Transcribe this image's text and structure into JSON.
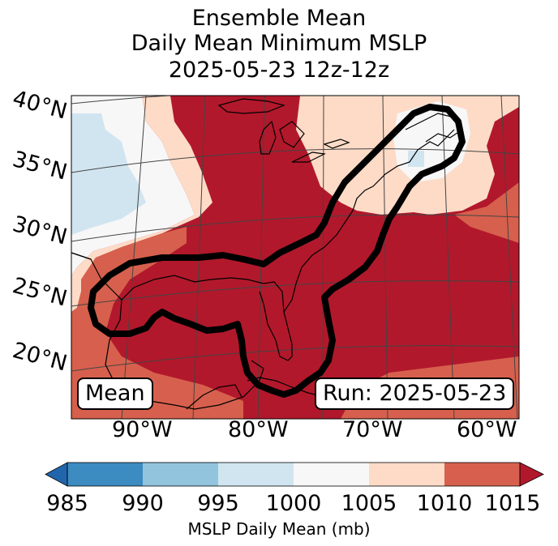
{
  "title": {
    "line1": "Ensemble Mean",
    "line2": "Daily Mean Minimum MSLP",
    "line3": "2025-05-23 12z-12z"
  },
  "map": {
    "lat_labels": [
      "40°N",
      "35°N",
      "30°N",
      "25°N",
      "20°N"
    ],
    "lon_labels": [
      "90°W",
      "80°W",
      "70°W",
      "60°W"
    ],
    "mean_label": "Mean",
    "run_label": "Run: 2025-05-23",
    "colors": {
      "c985_990": "#3c8bc1",
      "c990_995": "#92c4de",
      "c995_1000": "#d1e5f0",
      "c1000_1005": "#f7f7f7",
      "c1005_1010": "#fddbc7",
      "c1010_1015": "#d6604d",
      "c1015_plus": "#b2182b",
      "c_under": "#2166ac"
    }
  },
  "colorbar": {
    "ticks": [
      "985",
      "990",
      "995",
      "1000",
      "1005",
      "1010",
      "1015"
    ],
    "label": "MSLP Daily Mean (mb)"
  }
}
